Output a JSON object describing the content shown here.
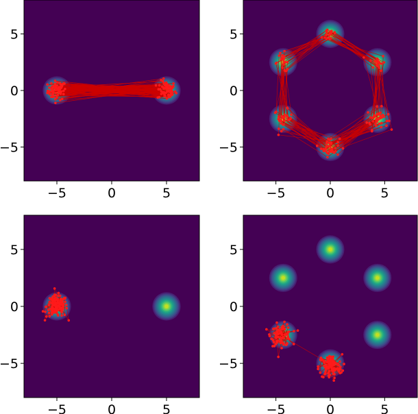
{
  "colors": {
    "background": "#440154",
    "contour": [
      "#482173",
      "#433e85",
      "#38598c",
      "#2d708e",
      "#25858e",
      "#1e9b8a",
      "#2ab07f",
      "#52c569",
      "#86d549",
      "#c2df23"
    ],
    "trajectory": "#cc0000",
    "points": "#ff1a1a"
  },
  "chart_data": [
    {
      "type": "contour",
      "panel": "top-left",
      "xlim": [
        -8,
        8
      ],
      "ylim": [
        -8,
        8
      ],
      "xticks": [
        "−5",
        "0",
        "5"
      ],
      "yticks": [
        "−5",
        "0",
        "5"
      ],
      "xtick_values": [
        -5,
        0,
        5
      ],
      "ytick_values": [
        -5,
        0,
        5
      ],
      "modes": [
        [
          -5,
          0
        ],
        [
          5,
          0
        ]
      ],
      "mode_sigma": 0.5,
      "paired_trajectories": true,
      "clusters": [
        {
          "center": [
            -5,
            0
          ],
          "spread": 0.7,
          "count": 70
        },
        {
          "center": [
            5,
            0
          ],
          "spread": 0.7,
          "count": 70
        }
      ]
    },
    {
      "type": "contour",
      "panel": "top-right",
      "xlim": [
        -8,
        8
      ],
      "ylim": [
        -8,
        8
      ],
      "xticks": [
        "−5",
        "0",
        "5"
      ],
      "yticks": [
        "−5",
        "0",
        "5"
      ],
      "xtick_values": [
        -5,
        0,
        5
      ],
      "ytick_values": [
        -5,
        0,
        5
      ],
      "modes": [
        [
          0,
          5
        ],
        [
          4.33,
          2.5
        ],
        [
          4.33,
          -2.5
        ],
        [
          0,
          -5
        ],
        [
          -4.33,
          -2.5
        ],
        [
          -4.33,
          2.5
        ]
      ],
      "mode_sigma": 0.5,
      "paired_trajectories": true,
      "clusters": [
        {
          "center": [
            0,
            5
          ],
          "spread": 0.6,
          "count": 20
        },
        {
          "center": [
            4.33,
            2.5
          ],
          "spread": 0.6,
          "count": 20
        },
        {
          "center": [
            4.33,
            -2.5
          ],
          "spread": 0.8,
          "count": 40
        },
        {
          "center": [
            0,
            -5
          ],
          "spread": 0.7,
          "count": 40
        },
        {
          "center": [
            -4.33,
            -2.5
          ],
          "spread": 0.7,
          "count": 30
        },
        {
          "center": [
            -4.33,
            2.5
          ],
          "spread": 0.7,
          "count": 20
        }
      ]
    },
    {
      "type": "contour",
      "panel": "bottom-left",
      "xlim": [
        -8,
        8
      ],
      "ylim": [
        -8,
        8
      ],
      "xticks": [
        "−5",
        "0",
        "5"
      ],
      "yticks": [
        "−5",
        "0",
        "5"
      ],
      "xtick_values": [
        -5,
        0,
        5
      ],
      "ytick_values": [
        -5,
        0,
        5
      ],
      "modes": [
        [
          -5,
          0
        ],
        [
          5,
          0
        ]
      ],
      "mode_sigma": 0.5,
      "paired_trajectories": false,
      "clusters": [
        {
          "center": [
            -5,
            0
          ],
          "spread": 0.8,
          "count": 140
        }
      ]
    },
    {
      "type": "contour",
      "panel": "bottom-right",
      "xlim": [
        -8,
        8
      ],
      "ylim": [
        -8,
        8
      ],
      "xticks": [
        "−5",
        "0",
        "5"
      ],
      "yticks": [
        "−5",
        "0",
        "5"
      ],
      "xtick_values": [
        -5,
        0,
        5
      ],
      "ytick_values": [
        -5,
        0,
        5
      ],
      "modes": [
        [
          0,
          5
        ],
        [
          4.33,
          2.5
        ],
        [
          4.33,
          -2.5
        ],
        [
          0,
          -5
        ],
        [
          -4.33,
          -2.5
        ],
        [
          -4.33,
          2.5
        ]
      ],
      "mode_sigma": 0.5,
      "paired_trajectories": false,
      "clusters": [
        {
          "center": [
            -4.5,
            -2.5
          ],
          "spread": 0.8,
          "count": 90
        },
        {
          "center": [
            0,
            -5.3
          ],
          "spread": 0.9,
          "count": 110
        }
      ]
    }
  ]
}
